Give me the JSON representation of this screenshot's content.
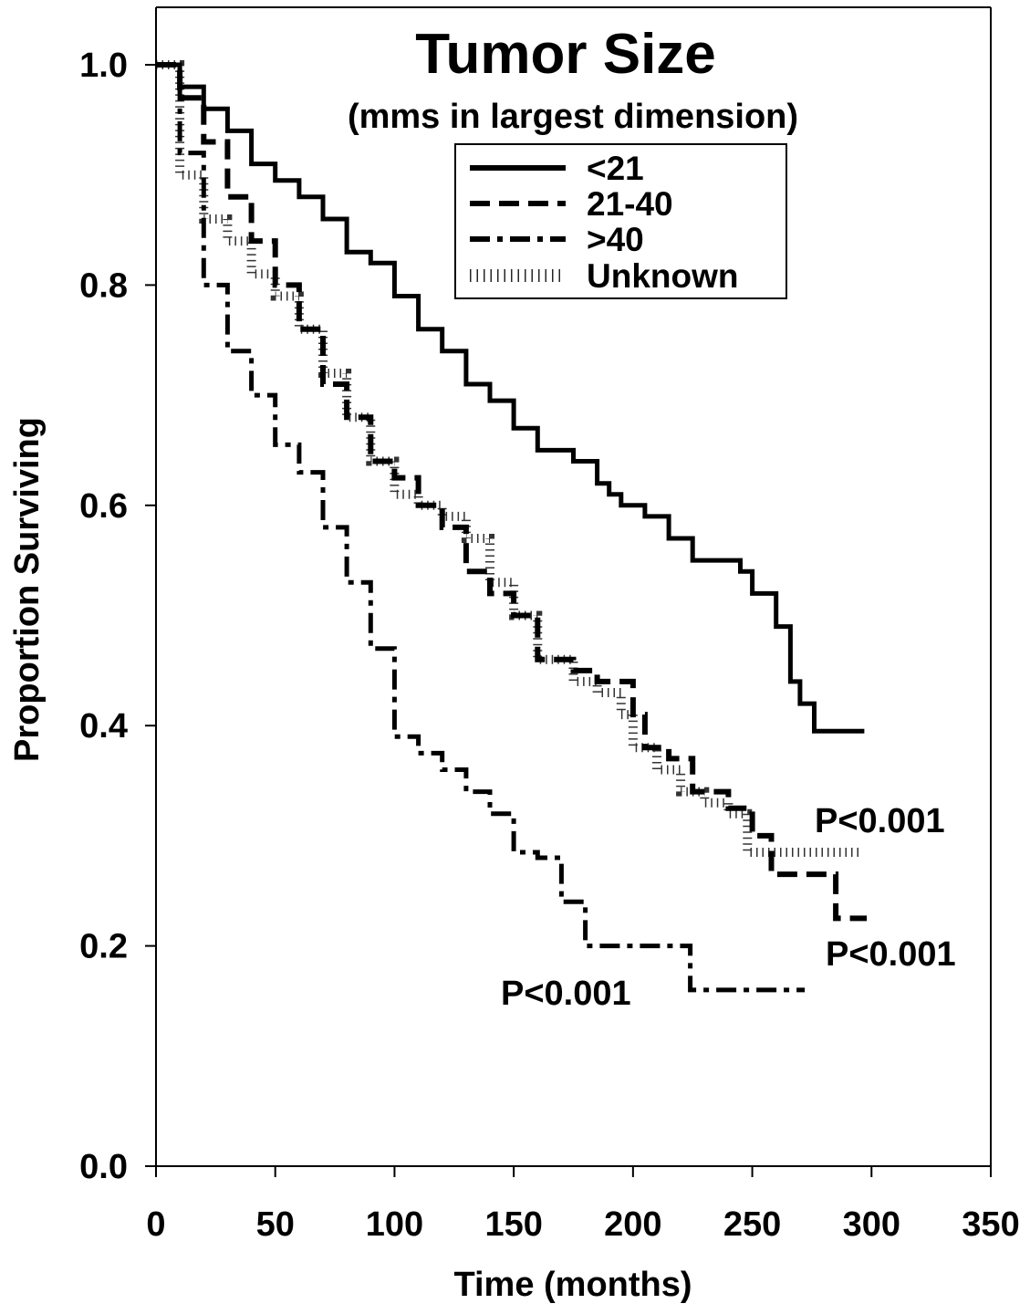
{
  "chart_data": {
    "type": "line",
    "step": true,
    "title": "Tumor Size",
    "subtitle": "(mms in largest dimension)",
    "xlabel": "Time (months)",
    "ylabel": "Proportion Surviving",
    "xlim": [
      0,
      350
    ],
    "ylim": [
      0.0,
      1.05
    ],
    "xticks": [
      0,
      50,
      100,
      150,
      200,
      250,
      300,
      350
    ],
    "xtick_labels": [
      "0",
      "50",
      "100",
      "150",
      "200",
      "250",
      "300",
      "350"
    ],
    "yticks": [
      0.0,
      0.2,
      0.4,
      0.6,
      0.8,
      1.0
    ],
    "ytick_labels": [
      "0.0",
      "0.2",
      "0.4",
      "0.6",
      "0.8",
      "1.0"
    ],
    "legend_position": "top-center",
    "series": [
      {
        "name": "<21",
        "style": "solid",
        "points": [
          [
            0,
            1.0
          ],
          [
            10,
            0.98
          ],
          [
            20,
            0.96
          ],
          [
            30,
            0.94
          ],
          [
            40,
            0.91
          ],
          [
            50,
            0.895
          ],
          [
            60,
            0.88
          ],
          [
            70,
            0.86
          ],
          [
            80,
            0.83
          ],
          [
            90,
            0.82
          ],
          [
            100,
            0.79
          ],
          [
            110,
            0.76
          ],
          [
            120,
            0.74
          ],
          [
            130,
            0.71
          ],
          [
            140,
            0.695
          ],
          [
            150,
            0.67
          ],
          [
            160,
            0.65
          ],
          [
            175,
            0.64
          ],
          [
            185,
            0.62
          ],
          [
            190,
            0.61
          ],
          [
            195,
            0.6
          ],
          [
            205,
            0.59
          ],
          [
            215,
            0.57
          ],
          [
            225,
            0.55
          ],
          [
            235,
            0.55
          ],
          [
            245,
            0.54
          ],
          [
            250,
            0.52
          ],
          [
            260,
            0.49
          ],
          [
            266,
            0.44
          ],
          [
            270,
            0.42
          ],
          [
            276,
            0.395
          ],
          [
            297,
            0.395
          ]
        ]
      },
      {
        "name": "21-40",
        "style": "dashed",
        "points": [
          [
            0,
            1.0
          ],
          [
            10,
            0.97
          ],
          [
            20,
            0.93
          ],
          [
            30,
            0.88
          ],
          [
            40,
            0.84
          ],
          [
            50,
            0.8
          ],
          [
            60,
            0.76
          ],
          [
            70,
            0.71
          ],
          [
            80,
            0.68
          ],
          [
            90,
            0.64
          ],
          [
            100,
            0.625
          ],
          [
            110,
            0.6
          ],
          [
            120,
            0.58
          ],
          [
            130,
            0.54
          ],
          [
            140,
            0.52
          ],
          [
            150,
            0.5
          ],
          [
            160,
            0.46
          ],
          [
            175,
            0.45
          ],
          [
            185,
            0.44
          ],
          [
            197,
            0.44
          ],
          [
            200,
            0.41
          ],
          [
            205,
            0.38
          ],
          [
            215,
            0.37
          ],
          [
            225,
            0.34
          ],
          [
            240,
            0.325
          ],
          [
            250,
            0.3
          ],
          [
            258,
            0.265
          ],
          [
            280,
            0.265
          ],
          [
            285,
            0.225
          ],
          [
            298,
            0.225
          ]
        ]
      },
      {
        "name": ">40",
        "style": "dash-dot",
        "points": [
          [
            0,
            1.0
          ],
          [
            10,
            0.92
          ],
          [
            20,
            0.8
          ],
          [
            30,
            0.74
          ],
          [
            40,
            0.7
          ],
          [
            50,
            0.655
          ],
          [
            60,
            0.63
          ],
          [
            70,
            0.58
          ],
          [
            80,
            0.53
          ],
          [
            90,
            0.47
          ],
          [
            100,
            0.39
          ],
          [
            110,
            0.375
          ],
          [
            120,
            0.36
          ],
          [
            130,
            0.34
          ],
          [
            140,
            0.32
          ],
          [
            150,
            0.285
          ],
          [
            160,
            0.28
          ],
          [
            170,
            0.24
          ],
          [
            180,
            0.2
          ],
          [
            222,
            0.2
          ],
          [
            224,
            0.16
          ],
          [
            272,
            0.16
          ]
        ]
      },
      {
        "name": "Unknown",
        "style": "dotted",
        "points": [
          [
            0,
            1.0
          ],
          [
            10,
            0.9
          ],
          [
            20,
            0.86
          ],
          [
            30,
            0.84
          ],
          [
            40,
            0.81
          ],
          [
            50,
            0.79
          ],
          [
            60,
            0.76
          ],
          [
            70,
            0.72
          ],
          [
            80,
            0.68
          ],
          [
            90,
            0.64
          ],
          [
            100,
            0.61
          ],
          [
            110,
            0.6
          ],
          [
            120,
            0.59
          ],
          [
            130,
            0.57
          ],
          [
            140,
            0.53
          ],
          [
            150,
            0.5
          ],
          [
            160,
            0.46
          ],
          [
            175,
            0.44
          ],
          [
            185,
            0.43
          ],
          [
            195,
            0.41
          ],
          [
            200,
            0.38
          ],
          [
            210,
            0.36
          ],
          [
            220,
            0.34
          ],
          [
            230,
            0.33
          ],
          [
            240,
            0.32
          ],
          [
            248,
            0.285
          ],
          [
            295,
            0.285
          ]
        ]
      }
    ],
    "annotations": [
      {
        "text": "P<0.001",
        "series": "Unknown",
        "anchor": "right of curve end"
      },
      {
        "text": "P<0.001",
        "series": "21-40",
        "anchor": "below right of curve end"
      },
      {
        "text": "P<0.001",
        "series": ">40",
        "anchor": "left of curve end"
      }
    ]
  }
}
